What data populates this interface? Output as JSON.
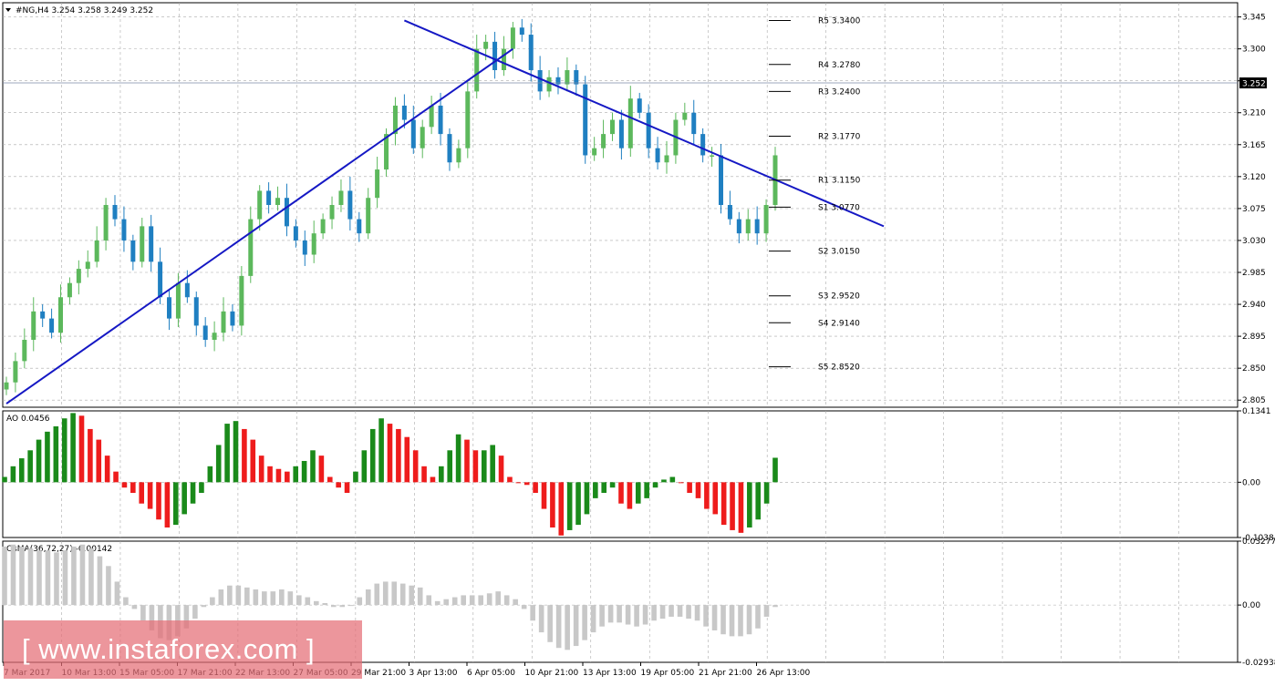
{
  "header": {
    "symbol_label": "#NG,H4",
    "ohlc": "3.254 3.258 3.249 3.252"
  },
  "colors": {
    "bull": "#5cb85c",
    "bear": "#1f7fc1",
    "trendline": "#1518c4",
    "ao_up": "#1a8a1a",
    "ao_down": "#ee1c1c",
    "osma": "#c8c8c8",
    "grid": "#aaaaaa"
  },
  "watermark": "[ www.instaforex.com ]",
  "x_axis": {
    "labels": [
      "7 Mar 2017",
      "10 Mar 13:00",
      "15 Mar 05:00",
      "17 Mar 21:00",
      "22 Mar 13:00",
      "27 Mar 05:00",
      "29 Mar 21:00",
      "3 Apr 13:00",
      "6 Apr 05:00",
      "10 Apr 21:00",
      "13 Apr 13:00",
      "19 Apr 05:00",
      "21 Apr 21:00",
      "26 Apr 13:00"
    ]
  },
  "chart_data": [
    {
      "type": "candlestick",
      "panel": "price",
      "title": "#NG,H4",
      "ylim": [
        2.795,
        3.365
      ],
      "y_ticks": [
        "3.345",
        "3.300",
        "3.255",
        "3.210",
        "3.165",
        "3.120",
        "3.075",
        "3.030",
        "2.985",
        "2.940",
        "2.895",
        "2.850",
        "2.805"
      ],
      "current_price": "3.252",
      "grid": true,
      "series": [
        {
          "name": "close",
          "values": [
            2.83,
            2.86,
            2.89,
            2.93,
            2.92,
            2.9,
            2.95,
            2.97,
            2.99,
            3.0,
            3.03,
            3.08,
            3.06,
            3.03,
            3.0,
            3.05,
            3.0,
            2.95,
            2.92,
            2.97,
            2.95,
            2.91,
            2.89,
            2.9,
            2.93,
            2.91,
            2.98,
            3.06,
            3.1,
            3.08,
            3.09,
            3.05,
            3.03,
            3.01,
            3.04,
            3.06,
            3.08,
            3.1,
            3.06,
            3.04,
            3.09,
            3.13,
            3.18,
            3.22,
            3.2,
            3.16,
            3.19,
            3.22,
            3.18,
            3.14,
            3.16,
            3.24,
            3.3,
            3.31,
            3.27,
            3.3,
            3.33,
            3.32,
            3.27,
            3.24,
            3.26,
            3.25,
            3.27,
            3.25,
            3.15,
            3.16,
            3.18,
            3.2,
            3.16,
            3.23,
            3.21,
            3.16,
            3.14,
            3.15,
            3.2,
            3.21,
            3.18,
            3.15,
            3.15,
            3.08,
            3.06,
            3.04,
            3.06,
            3.04,
            3.08,
            3.15
          ]
        },
        {
          "name": "Support/Resistance",
          "values": [
            {
              "label": "R5",
              "value": 3.34
            },
            {
              "label": "R4",
              "value": 3.278
            },
            {
              "label": "R3",
              "value": 3.24
            },
            {
              "label": "R2",
              "value": 3.177
            },
            {
              "label": "R1",
              "value": 3.115
            },
            {
              "label": "S1",
              "value": 3.077
            },
            {
              "label": "S2",
              "value": 3.015
            },
            {
              "label": "S3",
              "value": 2.952
            },
            {
              "label": "S4",
              "value": 2.914
            },
            {
              "label": "S5",
              "value": 2.852
            }
          ]
        }
      ],
      "level_labels": [
        "R5 3.3400",
        "R4 3.2780",
        "R3 3.2400",
        "R2 3.1770",
        "R1 3.1150",
        "S1 3.0770",
        "S2 3.0150",
        "S3 2.9520",
        "S4 2.9140",
        "S5 2.8520"
      ],
      "trendlines": [
        {
          "from": {
            "bar": 0,
            "value": 2.8
          },
          "to": {
            "bar": 56,
            "value": 3.3
          }
        },
        {
          "from": {
            "bar": 44,
            "value": 3.34
          },
          "to": {
            "bar": 97,
            "value": 3.05
          }
        }
      ]
    },
    {
      "type": "bar",
      "panel": "AO",
      "title": "AO 0.0456",
      "ylim": [
        -0.1038,
        0.1341
      ],
      "y_ticks": [
        "0.1341",
        "0.00",
        "-0.1038"
      ],
      "values": [
        0.01,
        0.03,
        0.045,
        0.06,
        0.08,
        0.095,
        0.105,
        0.12,
        0.13,
        0.125,
        0.1,
        0.08,
        0.05,
        0.02,
        -0.01,
        -0.02,
        -0.04,
        -0.05,
        -0.07,
        -0.085,
        -0.08,
        -0.06,
        -0.04,
        -0.02,
        0.03,
        0.07,
        0.11,
        0.115,
        0.1,
        0.08,
        0.05,
        0.03,
        0.025,
        0.02,
        0.03,
        0.04,
        0.06,
        0.05,
        0.01,
        -0.01,
        -0.02,
        0.02,
        0.06,
        0.1,
        0.12,
        0.11,
        0.1,
        0.085,
        0.06,
        0.03,
        0.01,
        0.03,
        0.06,
        0.09,
        0.08,
        0.06,
        0.06,
        0.07,
        0.05,
        0.01,
        0.0,
        -0.005,
        -0.02,
        -0.05,
        -0.085,
        -0.1,
        -0.09,
        -0.08,
        -0.06,
        -0.03,
        -0.02,
        -0.01,
        -0.04,
        -0.05,
        -0.04,
        -0.03,
        -0.01,
        0.005,
        0.01,
        0.0,
        -0.02,
        -0.03,
        -0.05,
        -0.06,
        -0.08,
        -0.09,
        -0.095,
        -0.085,
        -0.07,
        -0.04,
        0.046
      ]
    },
    {
      "type": "bar",
      "panel": "OsMA",
      "title": "OsMA(36,72,27) -0.00142",
      "ylim": [
        -0.02938,
        0.03277
      ],
      "y_ticks": [
        "0.03277",
        "0.00",
        "-0.02938"
      ],
      "values": [
        0.03,
        0.031,
        0.03,
        0.029,
        0.028,
        0.028,
        0.027,
        0.028,
        0.03,
        0.031,
        0.029,
        0.025,
        0.02,
        0.012,
        0.004,
        -0.002,
        -0.008,
        -0.013,
        -0.017,
        -0.018,
        -0.016,
        -0.012,
        -0.007,
        -0.001,
        0.004,
        0.008,
        0.01,
        0.01,
        0.009,
        0.008,
        0.007,
        0.007,
        0.008,
        0.007,
        0.005,
        0.004,
        0.002,
        0.001,
        -0.001,
        -0.001,
        0.0,
        0.004,
        0.008,
        0.011,
        0.012,
        0.012,
        0.011,
        0.01,
        0.009,
        0.005,
        0.002,
        0.003,
        0.004,
        0.005,
        0.005,
        0.005,
        0.006,
        0.007,
        0.005,
        0.003,
        -0.002,
        -0.008,
        -0.014,
        -0.019,
        -0.022,
        -0.023,
        -0.021,
        -0.018,
        -0.014,
        -0.011,
        -0.009,
        -0.009,
        -0.01,
        -0.011,
        -0.01,
        -0.008,
        -0.007,
        -0.006,
        -0.006,
        -0.007,
        -0.008,
        -0.011,
        -0.013,
        -0.015,
        -0.016,
        -0.016,
        -0.015,
        -0.012,
        -0.006,
        -0.001
      ]
    }
  ]
}
